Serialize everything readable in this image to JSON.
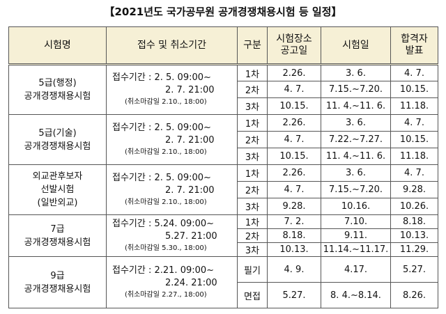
{
  "title": "【2021년도 국가공무원 공개경쟁채용시험 등 일정】",
  "header": [
    [
      "시험명"
    ],
    [
      "접수 및 취소기간"
    ],
    [
      "구분"
    ],
    [
      "시험장소",
      "공고일"
    ],
    [
      "시험일"
    ],
    [
      "합격자",
      "발표"
    ]
  ],
  "groups": [
    {
      "name": [
        "5급(행정)",
        "공개경쟁채용시험"
      ],
      "reception": [
        "접수기간 : 2. 5. 09:00~",
        "2. 7. 21:00",
        "(취소마감일 2.10., 18:00)"
      ],
      "rows": [
        [
          "1차",
          "2.26.",
          "3. 6.",
          "4. 7."
        ],
        [
          "2차",
          "4. 7.",
          "7.15.~7.20.",
          "10.15."
        ],
        [
          "3차",
          "10.15.",
          "11. 4.~11. 6.",
          "11.18."
        ]
      ]
    },
    {
      "name": [
        "5급(기술)",
        "공개경쟁채용시험"
      ],
      "reception": [
        "접수기간 : 2. 5. 09:00~",
        "2. 7. 21:00",
        "(취소마감일 2.10., 18:00)"
      ],
      "rows": [
        [
          "1차",
          "2.26.",
          "3. 6.",
          "4. 7."
        ],
        [
          "2차",
          "4. 7.",
          "7.22.~7.27.",
          "10.15."
        ],
        [
          "3차",
          "10.15.",
          "11. 4.~11. 6.",
          "11.18."
        ]
      ]
    },
    {
      "name": [
        "외교관후보자",
        "선발시험",
        "(일반외교)"
      ],
      "reception": [
        "접수기간 : 2. 5. 09:00~",
        "2. 7. 21:00",
        "(취소마감일 2.10., 18:00)"
      ],
      "rows": [
        [
          "1차",
          "2.26.",
          "3. 6.",
          "4. 7."
        ],
        [
          "2차",
          "4. 7.",
          "7.15.~7.20.",
          "9.28."
        ],
        [
          "3차",
          "9.28.",
          "10.16.",
          "10.26."
        ]
      ]
    },
    {
      "name": [
        "7급",
        "공개경쟁채용시험"
      ],
      "reception": [
        "접수기간 : 5.24. 09:00~",
        "5.27. 21:00",
        "(취소마감일 5.30., 18:00)"
      ],
      "rows": [
        [
          "1차",
          "7. 2.",
          "7.10.",
          "8.18."
        ],
        [
          "2차",
          "8.18.",
          "9.11.",
          "10.13."
        ],
        [
          "3차",
          "10.13.",
          "11.14.~11.17.",
          "11.29."
        ]
      ]
    },
    {
      "name": [
        "9급",
        "공개경쟁채용시험"
      ],
      "reception": [
        "접수기간 : 2.21. 09:00~",
        "2.24. 21:00",
        "(취소마감일 2.27., 18:00)"
      ],
      "rows": [
        [
          "필기",
          "4. 9.",
          "4.17.",
          "5.27."
        ],
        [
          "면접",
          "5.27.",
          "8. 4.~8.14.",
          "8.26."
        ]
      ]
    }
  ]
}
